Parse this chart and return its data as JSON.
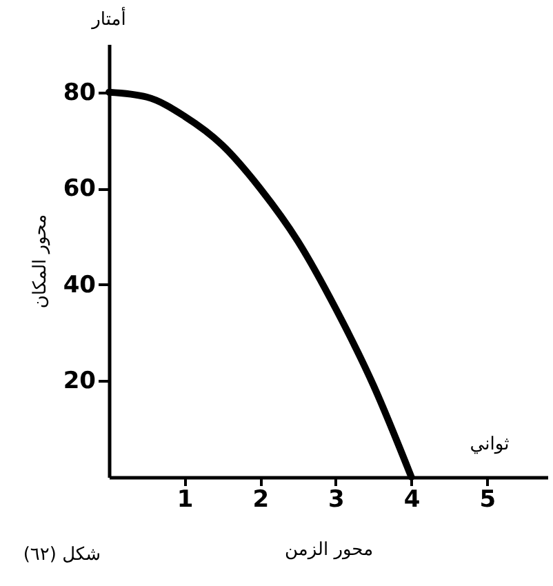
{
  "chart_data": {
    "type": "line",
    "xlabel": "محور الزمن",
    "ylabel": "محور المكان",
    "annotations": [
      "أمتار",
      "ثواني",
      "شكل (٦٢)"
    ],
    "x": [
      0,
      0.5,
      1,
      1.5,
      2,
      2.5,
      3,
      3.5,
      4
    ],
    "series": [
      {
        "color": "#000000",
        "values": [
          80,
          79,
          75,
          69,
          60,
          49,
          35,
          19,
          0
        ]
      }
    ],
    "xlim": [
      0,
      5.8
    ],
    "xticks": [
      1,
      2,
      3,
      4,
      5
    ],
    "ylim": [
      0,
      90
    ],
    "yticks": [
      20,
      40,
      60,
      80
    ],
    "grid": false,
    "marker": "none",
    "line_style": "solid"
  }
}
